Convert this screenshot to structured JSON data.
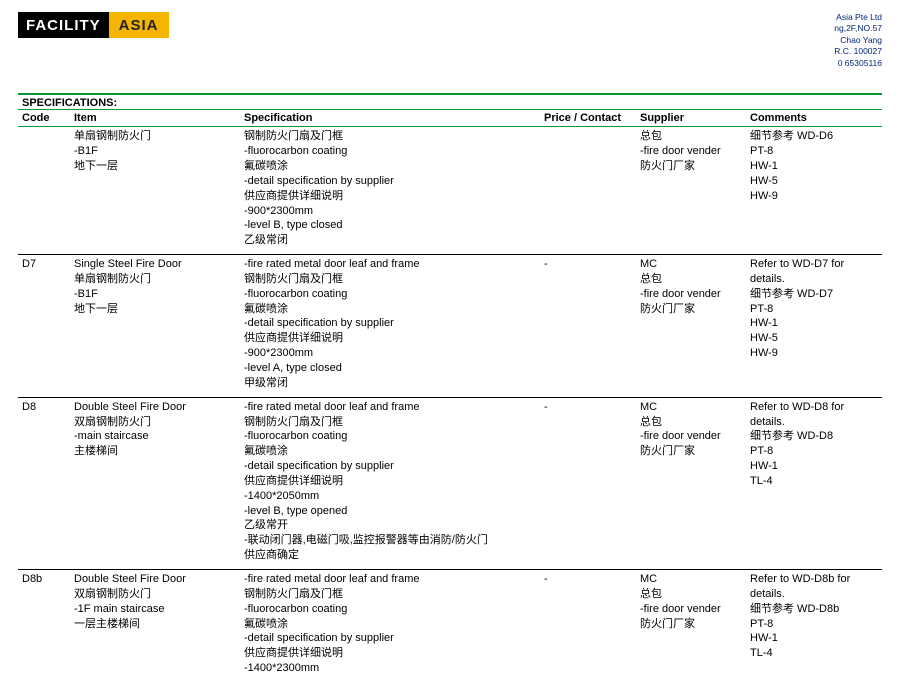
{
  "logo": {
    "left": "FACILITY",
    "right": "ASIA"
  },
  "company": [
    "Asia Pte Ltd",
    "ng,2F,NO.57",
    "Chao Yang",
    "R.C. 100027",
    "0 65305116"
  ],
  "section_title": "SPECIFICATIONS:",
  "columns": [
    "Code",
    "Item",
    "Specification",
    "Price / Contact",
    "Supplier",
    "Comments"
  ],
  "rows": [
    {
      "sep": false,
      "code": "",
      "item": [
        "单扇钢制防火门",
        "-B1F",
        "地下一层"
      ],
      "spec": [
        "钢制防火门扇及门框",
        "-fluorocarbon coating",
        "氟碳喷涂",
        "-detail specification by supplier",
        "供应商提供详细说明",
        "-900*2300mm",
        "-level B, type closed",
        "乙级常闭"
      ],
      "price": [
        ""
      ],
      "supplier": [
        "总包",
        "-fire door vender",
        "防火门厂家"
      ],
      "comments": [
        "细节参考 WD-D6",
        "PT-8",
        "HW-1",
        "HW-5",
        "HW-9"
      ]
    },
    {
      "sep": true,
      "code": "D7",
      "item": [
        "Single Steel Fire Door",
        "单扇钢制防火门",
        "-B1F",
        "地下一层"
      ],
      "spec": [
        "-fire rated metal door leaf and frame",
        "钢制防火门扇及门框",
        "-fluorocarbon coating",
        "氟碳喷涂",
        "-detail specification by supplier",
        "供应商提供详细说明",
        "-900*2300mm",
        "-level A, type closed",
        "甲级常闭"
      ],
      "price": [
        "-"
      ],
      "supplier": [
        "MC",
        "总包",
        "-fire door vender",
        "防火门厂家"
      ],
      "comments": [
        "Refer to WD-D7 for details.",
        "细节参考 WD-D7",
        "PT-8",
        "HW-1",
        "HW-5",
        "HW-9"
      ]
    },
    {
      "sep": true,
      "code": "D8",
      "item": [
        "Double Steel Fire Door",
        "双扇钢制防火门",
        "-main staircase",
        "主楼梯间"
      ],
      "spec": [
        "-fire rated metal door leaf and frame",
        "钢制防火门扇及门框",
        "-fluorocarbon coating",
        "氟碳喷涂",
        "-detail specification by supplier",
        "供应商提供详细说明",
        "-1400*2050mm",
        "-level B, type opened",
        "乙级常开",
        "-联动闭门器,电磁门吸,监控报警器等由消防/防火门",
        "供应商确定"
      ],
      "price": [
        "-"
      ],
      "supplier": [
        "MC",
        "总包",
        "-fire door vender",
        "防火门厂家"
      ],
      "comments": [
        "Refer to WD-D8 for details.",
        "细节参考 WD-D8",
        "PT-8",
        "HW-1",
        "TL-4"
      ]
    },
    {
      "sep": true,
      "code": "D8b",
      "item": [
        "Double Steel Fire Door",
        "双扇钢制防火门",
        "-1F main staircase",
        "一层主楼梯间"
      ],
      "spec": [
        "-fire rated metal door leaf and frame",
        "钢制防火门扇及门框",
        "-fluorocarbon coating",
        "氟碳喷涂",
        "-detail specification by supplier",
        "供应商提供详细说明",
        "-1400*2300mm"
      ],
      "price": [
        "-"
      ],
      "supplier": [
        "MC",
        "总包",
        "-fire door vender",
        "防火门厂家"
      ],
      "comments": [
        "Refer to WD-D8b for details.",
        "细节参考 WD-D8b",
        "PT-8",
        "HW-1",
        "TL-4"
      ]
    }
  ]
}
